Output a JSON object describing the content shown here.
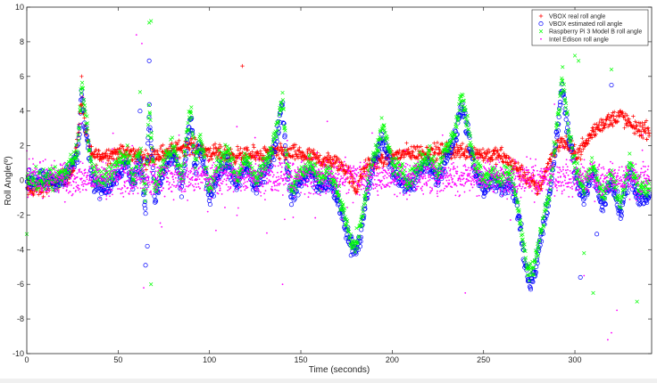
{
  "chart_data": {
    "type": "scatter",
    "title": "",
    "xlabel": "Time (seconds)",
    "ylabel": "Roll Angle(º)",
    "xlim": [
      0,
      342
    ],
    "ylim": [
      -10,
      10
    ],
    "xticks": [
      0,
      50,
      100,
      150,
      200,
      250,
      300
    ],
    "yticks": [
      -10,
      -8,
      -6,
      -4,
      -2,
      0,
      2,
      4,
      6,
      8,
      10
    ],
    "grid": false,
    "legend_position": "top-right",
    "series": [
      {
        "name": "VBOX real roll angle",
        "marker": "+",
        "color": "#ff0000",
        "trend": {
          "x": [
            0,
            10,
            20,
            25,
            28,
            30,
            32,
            35,
            40,
            50,
            60,
            65,
            70,
            80,
            85,
            90,
            95,
            100,
            110,
            120,
            130,
            140,
            150,
            160,
            170,
            175,
            178,
            180,
            183,
            186,
            190,
            200,
            210,
            220,
            230,
            240,
            250,
            260,
            265,
            270,
            275,
            280,
            285,
            290,
            295,
            300,
            305,
            310,
            315,
            320,
            325,
            330,
            335,
            342
          ],
          "y": [
            -0.6,
            -0.4,
            0.2,
            0.4,
            2.5,
            4.8,
            3.0,
            1.5,
            1.4,
            1.6,
            1.5,
            1.2,
            1.5,
            1.7,
            1.9,
            2.0,
            1.8,
            1.6,
            1.5,
            1.4,
            1.5,
            1.6,
            1.5,
            1.2,
            1.0,
            0.6,
            0.0,
            -0.6,
            0.2,
            0.8,
            1.0,
            1.4,
            1.6,
            1.6,
            1.7,
            1.7,
            1.5,
            1.4,
            1.0,
            0.5,
            0.0,
            -0.5,
            0.8,
            2.0,
            2.2,
            1.5,
            2.0,
            2.8,
            3.3,
            3.5,
            3.8,
            3.2,
            3.0,
            2.8
          ],
          "spread": 0.9
        },
        "outliers": [
          [
            118,
            6.6
          ],
          [
            30,
            6.0
          ]
        ]
      },
      {
        "name": "VBOX  estimated roll angle",
        "marker": "o",
        "color": "#0000ff",
        "trend": {
          "x": [
            0,
            20,
            28,
            30,
            33,
            36,
            40,
            45,
            50,
            55,
            58,
            60,
            62,
            65,
            67,
            70,
            75,
            80,
            85,
            88,
            90,
            92,
            95,
            100,
            105,
            110,
            115,
            120,
            125,
            130,
            135,
            140,
            142,
            145,
            150,
            155,
            160,
            165,
            170,
            175,
            178,
            180,
            182,
            186,
            190,
            195,
            200,
            205,
            210,
            215,
            220,
            225,
            230,
            235,
            238,
            240,
            245,
            250,
            255,
            260,
            265,
            270,
            272,
            275,
            278,
            282,
            286,
            290,
            293,
            296,
            300,
            305,
            310,
            315,
            320,
            325,
            330,
            335,
            342
          ],
          "y": [
            0.0,
            0.0,
            1.5,
            5.0,
            2.5,
            0.0,
            -0.5,
            -0.3,
            0.5,
            1.0,
            -0.3,
            0.5,
            1.2,
            -1.5,
            4.0,
            -1.0,
            0.5,
            1.5,
            -0.5,
            2.5,
            3.5,
            0.5,
            2.0,
            -1.0,
            0.5,
            1.0,
            -0.5,
            1.0,
            -0.5,
            0.5,
            1.5,
            4.5,
            1.0,
            -1.0,
            0.0,
            0.5,
            -0.5,
            0.0,
            -1.0,
            -3.0,
            -3.8,
            -4.0,
            -3.5,
            -1.0,
            1.0,
            2.5,
            0.5,
            0.0,
            -0.5,
            0.5,
            1.0,
            0.0,
            1.5,
            2.5,
            4.5,
            3.5,
            0.5,
            -0.5,
            0.0,
            -0.5,
            0.0,
            -2.5,
            -4.5,
            -6.0,
            -5.5,
            -3.0,
            -1.0,
            2.5,
            5.5,
            3.0,
            0.5,
            -1.0,
            0.5,
            -1.5,
            0.0,
            -2.0,
            0.5,
            -1.0,
            -1.0
          ],
          "spread": 1.0
        },
        "outliers": [
          [
            67,
            6.9
          ],
          [
            62,
            4.0
          ],
          [
            63,
            0.5
          ],
          [
            65,
            -4.9
          ],
          [
            66,
            -3.8
          ],
          [
            320,
            5.5
          ],
          [
            303,
            -5.6
          ],
          [
            312,
            -3.1
          ]
        ]
      },
      {
        "name": "Raspberry Pi 3 Model B roll angle",
        "marker": "x",
        "color": "#00ff00",
        "trend": {
          "x": [
            0,
            20,
            28,
            30,
            33,
            36,
            40,
            45,
            50,
            55,
            58,
            60,
            62,
            65,
            67,
            70,
            75,
            80,
            85,
            88,
            90,
            92,
            95,
            100,
            105,
            110,
            115,
            120,
            125,
            130,
            135,
            140,
            142,
            145,
            150,
            155,
            160,
            165,
            170,
            175,
            178,
            180,
            182,
            186,
            190,
            195,
            200,
            205,
            210,
            215,
            220,
            225,
            230,
            235,
            238,
            240,
            245,
            250,
            255,
            260,
            265,
            270,
            272,
            275,
            278,
            282,
            286,
            290,
            293,
            296,
            300,
            305,
            310,
            315,
            320,
            325,
            330,
            335,
            342
          ],
          "y": [
            0.0,
            0.2,
            1.8,
            5.5,
            3.0,
            0.5,
            0.0,
            0.3,
            1.0,
            1.5,
            0.0,
            1.0,
            1.5,
            -1.0,
            4.5,
            -0.5,
            1.0,
            2.0,
            0.0,
            3.0,
            4.0,
            1.0,
            2.5,
            -0.5,
            1.0,
            1.5,
            0.0,
            1.5,
            0.0,
            1.0,
            2.0,
            4.8,
            1.5,
            -0.5,
            0.5,
            1.0,
            0.0,
            0.5,
            -0.5,
            -2.5,
            -3.5,
            -3.8,
            -3.0,
            -0.5,
            1.5,
            3.0,
            1.0,
            0.5,
            0.0,
            1.0,
            1.5,
            0.5,
            2.0,
            3.0,
            5.0,
            4.0,
            1.0,
            0.0,
            0.5,
            0.0,
            0.5,
            -2.0,
            -4.0,
            -5.5,
            -5.0,
            -2.5,
            -0.5,
            3.0,
            6.0,
            3.5,
            1.0,
            -0.5,
            1.0,
            -1.0,
            0.5,
            -1.5,
            1.0,
            -0.5,
            -0.5
          ],
          "spread": 1.1
        },
        "outliers": [
          [
            68,
            9.2
          ],
          [
            67,
            9.1
          ],
          [
            62,
            5.1
          ],
          [
            0,
            -3.1
          ],
          [
            68,
            -6.0
          ],
          [
            300,
            7.2
          ],
          [
            302,
            6.9
          ],
          [
            320,
            6.4
          ],
          [
            334,
            -7.0
          ],
          [
            310,
            -6.5
          ],
          [
            305,
            -4.2
          ]
        ]
      },
      {
        "name": "Intel Edison roll angle",
        "marker": ".",
        "color": "#ff00ff",
        "trend": {
          "x": [
            0,
            50,
            100,
            150,
            200,
            250,
            300,
            342
          ],
          "y": [
            0.0,
            0.1,
            0.2,
            0.1,
            0.2,
            0.2,
            0.1,
            0.0
          ],
          "spread": 1.5
        },
        "outliers": [
          [
            60,
            8.4
          ],
          [
            63,
            7.9
          ],
          [
            64,
            -6.2
          ],
          [
            30,
            3.3
          ],
          [
            115,
            3.1
          ],
          [
            320,
            -8.8
          ],
          [
            318,
            -9.2
          ],
          [
            323,
            -7.5
          ],
          [
            305,
            -5.5
          ],
          [
            140,
            -6.0
          ],
          [
            240,
            -6.5
          ]
        ]
      }
    ]
  }
}
